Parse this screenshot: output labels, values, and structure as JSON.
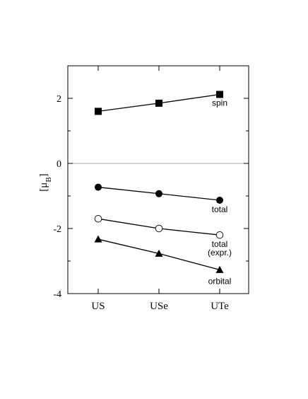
{
  "chart_data": {
    "type": "line",
    "title": "",
    "xlabel": "",
    "ylabel": "[μB]",
    "ylabel_main": "[μ",
    "ylabel_sub": "B",
    "ylabel_close": "]",
    "categories": [
      "US",
      "USe",
      "UTe"
    ],
    "ylim": [
      -4,
      3
    ],
    "yticks": [
      -4,
      -2,
      0,
      2
    ],
    "yticks_labels": [
      "-4",
      "-2",
      "0",
      "2"
    ],
    "grid": false,
    "zero_line": true,
    "series": [
      {
        "name": "spin",
        "values": [
          1.6,
          1.85,
          2.12
        ],
        "marker": "square-filled"
      },
      {
        "name": "total",
        "values": [
          -0.73,
          -0.93,
          -1.13
        ],
        "marker": "circle-filled"
      },
      {
        "name": "total",
        "name_line2": "(expr.)",
        "values": [
          -1.7,
          -2.0,
          -2.2
        ],
        "marker": "circle-open"
      },
      {
        "name": "orbital",
        "values": [
          -2.33,
          -2.77,
          -3.27
        ],
        "marker": "triangle-filled"
      }
    ],
    "colors": {
      "line": "#000000",
      "zero_line": "#888888",
      "axis": "#000000"
    }
  }
}
